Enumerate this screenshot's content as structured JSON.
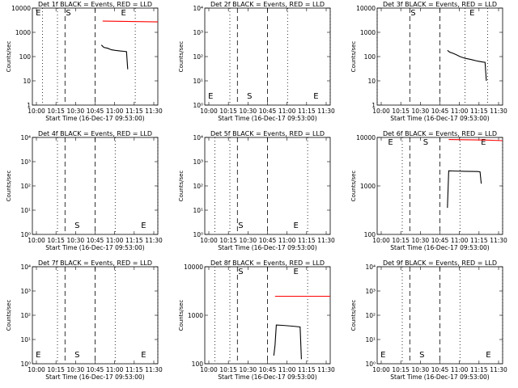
{
  "x_ticks": [
    "10:00",
    "10:15",
    "10:30",
    "10:45",
    "11:00",
    "11:15",
    "11:30"
  ],
  "x_label": "Start Time (16-Dec-17 09:53:00)",
  "y_label": "Counts/sec",
  "colors": {
    "events": "#000000",
    "lld": "#ff0000"
  },
  "chart_data": [
    {
      "type": "line",
      "title": "Det 1f BLACK = Events, RED = LLD",
      "xlim_min": [
        0,
        100
      ],
      "ylog": true,
      "yexp": [
        0,
        4
      ],
      "yticks": [
        "1",
        "10",
        "100",
        "1000",
        "10000"
      ],
      "markers": {
        "E1": 2,
        "S": 26,
        "E2": 70
      },
      "dashed": [
        26,
        50
      ],
      "dotted": [
        8,
        20,
        82
      ],
      "events": [
        [
          55,
          300
        ],
        [
          57,
          240
        ],
        [
          60,
          220
        ],
        [
          63,
          190
        ],
        [
          66,
          180
        ],
        [
          70,
          170
        ],
        [
          73,
          165
        ],
        [
          75,
          160
        ],
        [
          76,
          30
        ]
      ],
      "lld": [
        [
          56,
          2900
        ],
        [
          100,
          2700
        ]
      ]
    },
    {
      "type": "line",
      "title": "Det 2f BLACK = Events, RED = LLD",
      "xlim_min": [
        0,
        100
      ],
      "ylog": false,
      "yexp": [
        0,
        4
      ],
      "yticks": [
        "10⁰",
        "10¹",
        "10²",
        "10³",
        "10⁴"
      ],
      "markers": {
        "E1": 2,
        "S": 33,
        "E2": 86
      },
      "dashed": [
        26,
        50
      ],
      "dotted": [
        20,
        66,
        100
      ],
      "events": [],
      "lld": []
    },
    {
      "type": "line",
      "title": "Det 3f BLACK = Events, RED = LLD",
      "xlim_min": [
        0,
        100
      ],
      "ylog": true,
      "yexp": [
        0,
        4
      ],
      "yticks": [
        "1",
        "10",
        "100",
        "1000",
        "10000"
      ],
      "markers": {
        "S": 26,
        "E2": 73
      },
      "dashed": [
        26,
        50
      ],
      "dotted": [
        0,
        70,
        88
      ],
      "events": [
        [
          56,
          180
        ],
        [
          58,
          150
        ],
        [
          60,
          140
        ],
        [
          63,
          120
        ],
        [
          66,
          100
        ],
        [
          70,
          85
        ],
        [
          75,
          75
        ],
        [
          80,
          65
        ],
        [
          84,
          60
        ],
        [
          86,
          58
        ],
        [
          87,
          10
        ]
      ],
      "lld": []
    },
    {
      "type": "line",
      "title": "Det 4f BLACK = Events, RED = LLD",
      "xlim_min": [
        0,
        100
      ],
      "ylog": false,
      "yexp": [
        0,
        4
      ],
      "yticks": [
        "10⁰",
        "10¹",
        "10²",
        "10³",
        "10⁴"
      ],
      "markers": {
        "S": 33,
        "E2": 86
      },
      "dashed": [
        26,
        50
      ],
      "dotted": [
        20,
        66,
        100
      ],
      "events": [],
      "lld": []
    },
    {
      "type": "line",
      "title": "Det 5f BLACK = Events, RED = LLD",
      "xlim_min": [
        0,
        100
      ],
      "ylog": false,
      "yexp": [
        0,
        4
      ],
      "yticks": [
        "10⁰",
        "10¹",
        "10²",
        "10³",
        "10⁴"
      ],
      "markers": {
        "S": 26,
        "E2": 70
      },
      "dashed": [
        26,
        50
      ],
      "dotted": [
        8,
        20,
        82
      ],
      "events": [],
      "lld": []
    },
    {
      "type": "line",
      "title": "Det 6f BLACK = Events, RED = LLD",
      "xlim_min": [
        0,
        100
      ],
      "ylog": true,
      "yexp": [
        1.903,
        4
      ],
      "yticks": [
        "100",
        "1000",
        "10000"
      ],
      "markers": {
        "E1": 8,
        "S": 36,
        "E2": 82
      },
      "dashed": [
        26,
        50
      ],
      "dotted": [
        20,
        66,
        100
      ],
      "events": [
        [
          56,
          300
        ],
        [
          57,
          1900
        ],
        [
          60,
          1880
        ],
        [
          70,
          1850
        ],
        [
          80,
          1830
        ],
        [
          82,
          1800
        ],
        [
          83,
          1000
        ]
      ],
      "lld": [
        [
          57,
          9000
        ],
        [
          84,
          8800
        ],
        [
          86,
          8800
        ],
        [
          100,
          8500
        ]
      ]
    },
    {
      "type": "line",
      "title": "Det 7f BLACK = Events, RED = LLD",
      "xlim_min": [
        0,
        100
      ],
      "ylog": false,
      "yexp": [
        0,
        4
      ],
      "yticks": [
        "10⁰",
        "10¹",
        "10²",
        "10³",
        "10⁴"
      ],
      "markers": {
        "E1": 2,
        "S": 33,
        "E2": 86
      },
      "dashed": [
        26,
        50
      ],
      "dotted": [
        20,
        66,
        100
      ],
      "events": [],
      "lld": []
    },
    {
      "type": "line",
      "title": "Det 8f BLACK = Events, RED = LLD",
      "xlim_min": [
        0,
        100
      ],
      "ylog": true,
      "yexp": [
        1.903,
        4
      ],
      "yticks": [
        "100",
        "1000",
        "10000"
      ],
      "markers": {
        "S": 26,
        "E2": 70
      },
      "dashed": [
        26,
        50
      ],
      "dotted": [
        8,
        20,
        82
      ],
      "events": [
        [
          55,
          120
        ],
        [
          56,
          200
        ],
        [
          57,
          550
        ],
        [
          62,
          540
        ],
        [
          70,
          520
        ],
        [
          76,
          500
        ],
        [
          77,
          100
        ]
      ],
      "lld": [
        [
          56,
          2300
        ],
        [
          100,
          2300
        ]
      ]
    },
    {
      "type": "line",
      "title": "Det 9f BLACK = Events, RED = LLD",
      "xlim_min": [
        0,
        100
      ],
      "ylog": false,
      "yexp": [
        0,
        4
      ],
      "yticks": [
        "10⁰",
        "10¹",
        "10²",
        "10³",
        "10⁴"
      ],
      "markers": {
        "E1": 2,
        "S": 33,
        "E2": 86
      },
      "dashed": [
        26,
        50
      ],
      "dotted": [
        20,
        66,
        100
      ],
      "events": [],
      "lld": []
    }
  ]
}
